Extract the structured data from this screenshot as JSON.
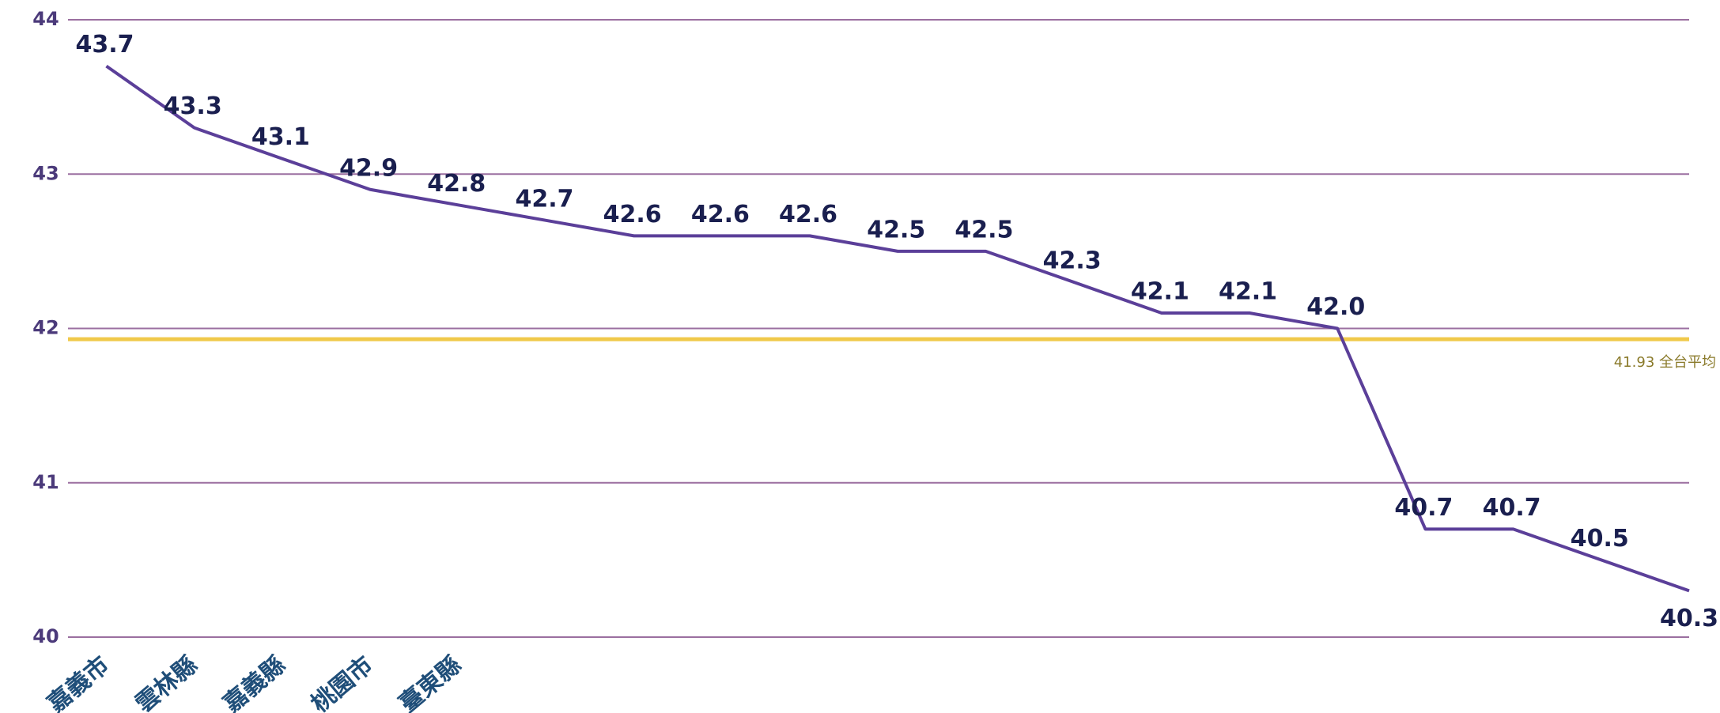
{
  "chart_data": {
    "type": "line",
    "categories": [
      "嘉義市",
      "雲林縣",
      "嘉義縣",
      "桃園市",
      "臺東縣",
      null,
      null,
      null,
      null,
      null,
      null,
      null,
      null,
      null,
      null,
      null,
      null,
      null,
      null
    ],
    "series": [
      {
        "color": "#5b3f99",
        "values": [
          43.7,
          43.3,
          43.1,
          42.9,
          42.8,
          42.7,
          42.6,
          42.6,
          42.6,
          42.5,
          42.5,
          42.3,
          42.1,
          42.1,
          42.0,
          40.7,
          40.7,
          40.5,
          40.3
        ],
        "value_labels": [
          "43.7",
          "43.3",
          "43.1",
          "42.9",
          "42.8",
          "42.7",
          "42.6",
          "42.6",
          "42.6",
          "42.5",
          "42.5",
          "42.3",
          "42.1",
          "42.1",
          "42.0",
          "40.7",
          "40.7",
          "40.5",
          "40.3"
        ]
      }
    ],
    "ylim": [
      40,
      44
    ],
    "yticks": [
      40,
      41,
      42,
      43,
      44
    ],
    "grid": true,
    "reference_line": {
      "value": 41.93,
      "label": "41.93 全台平均",
      "color": "#f0c94a"
    }
  }
}
